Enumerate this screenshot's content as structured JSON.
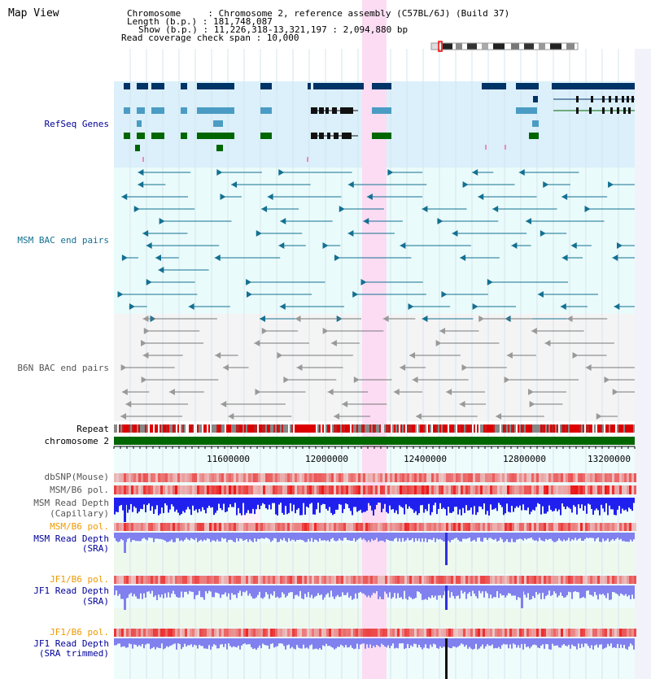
{
  "title": "Map View",
  "header": {
    "line1": "Chromosome     : Chromosome 2, reference assembly (C57BL/6J) (Build 37)",
    "line2": "Length (b.p.) : 181,748,087",
    "line3": "Show (b.p.) : 11,226,318-13,321,197 : 2,094,880 bp",
    "line4": "Read coverage check span : 10,000"
  },
  "tracks": {
    "refseq": "RefSeq Genes",
    "msm_bac": "MSM BAC end pairs",
    "b6n_bac": "B6N BAC end pairs",
    "repeat": "Repeat",
    "chromosome": "chromosome 2",
    "dbsnp": "dbSNP(Mouse)",
    "msm_pol1": "MSM/B6 pol.",
    "msm_cap_1": "MSM Read Depth",
    "msm_cap_2": "(Capillary)",
    "msm_pol2": "MSM/B6 pol.",
    "msm_sra_1": "MSM Read Depth",
    "msm_sra_2": "(SRA)",
    "jf1_pol1": "JF1/B6 pol.",
    "jf1_sra_1": "JF1 Read Depth",
    "jf1_sra_2": "(SRA)",
    "jf1_pol2": "JF1/B6 pol.",
    "jf1_trim_1": "JF1 Read Depth",
    "jf1_trim_2": "(SRA trimmed)"
  },
  "ruler": {
    "ticks": [
      "11600000",
      "12000000",
      "12400000",
      "12800000",
      "13200000"
    ]
  },
  "colors": {
    "refseq_bg": "#dbf0fa",
    "bac_bg": "#eafbfb",
    "highlight": "#fbdcf3",
    "dark_blue": "#003366",
    "mid_blue": "#4b9cc4",
    "green": "#006600",
    "teal": "#137091",
    "gray": "#777777",
    "repeat_red": "#dd0000",
    "chrom_green": "#006600",
    "depth_blue": "#2020ee",
    "depth_light": "#8080ee",
    "label_blue": "#000099",
    "label_orange": "#ee9900"
  }
}
